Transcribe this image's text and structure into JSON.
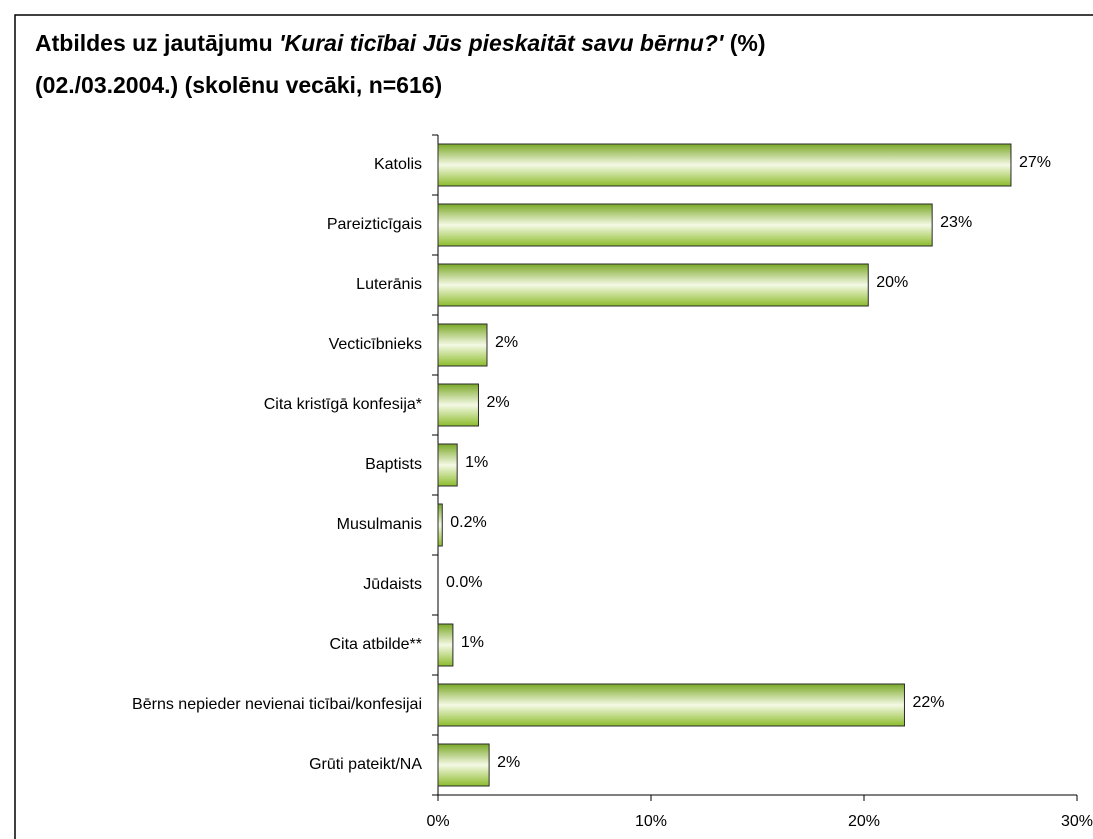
{
  "chart_data": {
    "type": "barh",
    "title": [
      "Atbildes uz jautājumu",
      "'Kurai ticībai Jūs pieskaitāt savu bērnu?'",
      "(%) (02./03.2004.) (skolēnu vecāki, n=616)"
    ],
    "categories": [
      "Katolis",
      "Pareizticīgais",
      "Luterānis",
      "Vecticībnieks",
      "Cita kristīgā konfesija*",
      "Baptists",
      "Musulmanis",
      "Jūdaists",
      "Cita atbilde**",
      "Bērns nepieder nevienai ticībai/konfesijai",
      "Grūti pateikt/NA"
    ],
    "values": [
      26.9,
      23.2,
      20.2,
      2.3,
      1.9,
      0.9,
      0.2,
      0,
      0.7,
      21.9,
      2.4
    ],
    "value_labels": [
      "27%",
      "23%",
      "20%",
      "2%",
      "2%",
      "1%",
      "0.2%",
      "0.0%",
      "1%",
      "22%",
      "2%"
    ],
    "color": "#8cbc2c",
    "xlim": [
      0,
      30
    ],
    "xticks": [
      {
        "value": 0,
        "label": "0%"
      },
      {
        "value": 10,
        "label": "10%"
      },
      {
        "value": 20,
        "label": "20%"
      },
      {
        "value": 30,
        "label": "30%"
      }
    ]
  }
}
